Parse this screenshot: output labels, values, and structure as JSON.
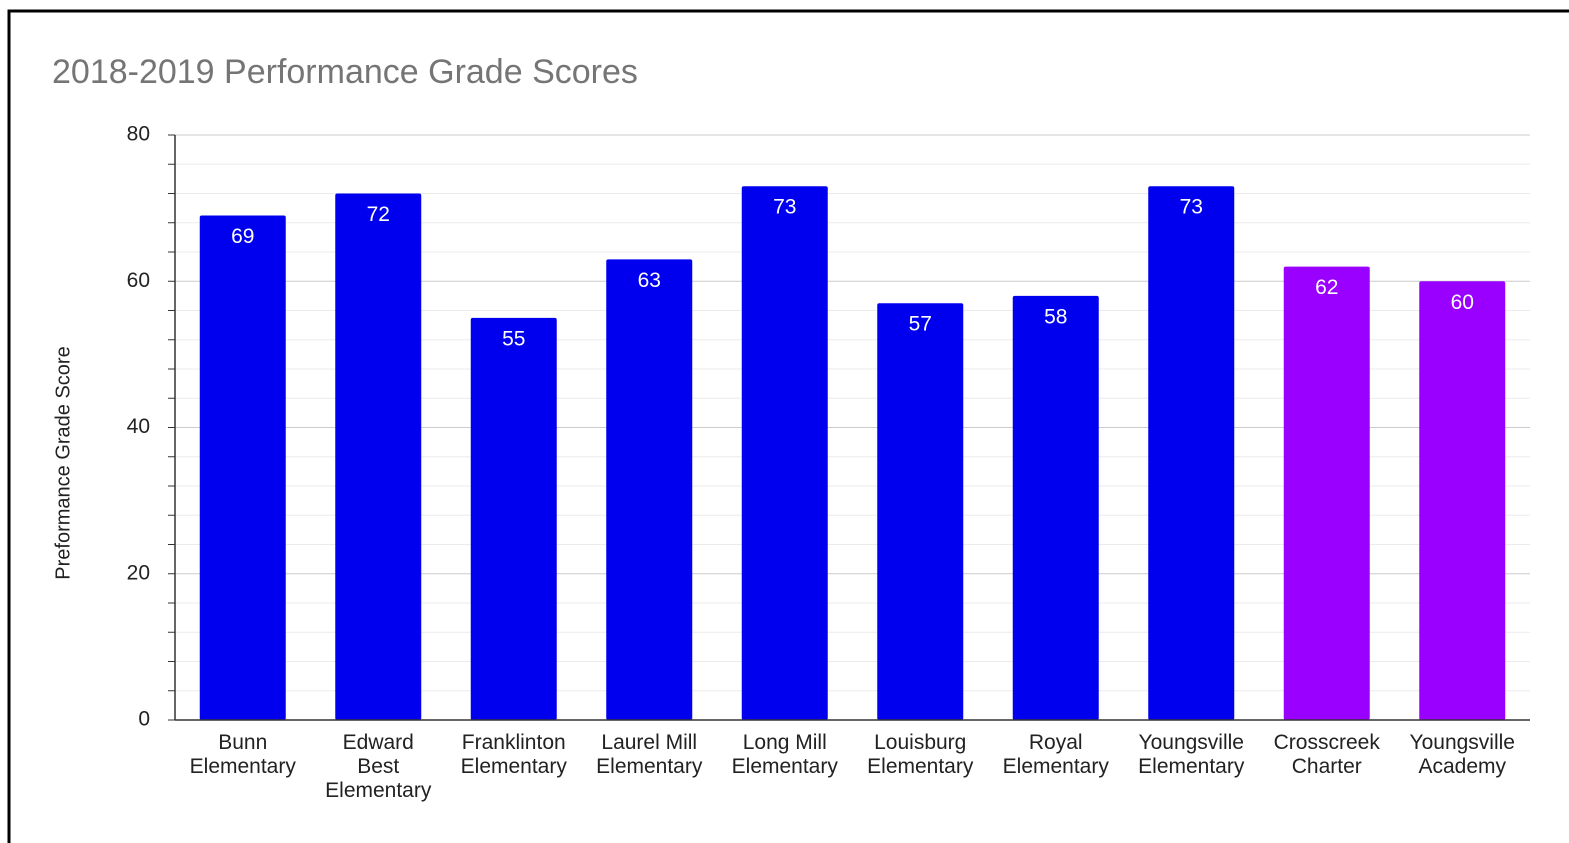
{
  "chart_data": {
    "type": "bar",
    "title": "2018-2019 Performance Grade Scores",
    "y_label": "Preformance Grade Score",
    "categories": [
      "Bunn\nElementary",
      "Edward\nBest\nElementary",
      "Franklinton\nElementary",
      "Laurel Mill\nElementary",
      "Long Mill\nElementary",
      "Louisburg\nElementary",
      "Royal\nElementary",
      "Youngsville\nElementary",
      "Crosscreek\nCharter",
      "Youngsville\nAcademy"
    ],
    "values": [
      69,
      72,
      55,
      63,
      73,
      57,
      58,
      73,
      62,
      60
    ],
    "colors": [
      "#0000ee",
      "#0000ee",
      "#0000ee",
      "#0000ee",
      "#0000ee",
      "#0000ee",
      "#0000ee",
      "#0000ee",
      "#9900ff",
      "#9900ff"
    ],
    "ylim": [
      0,
      80
    ],
    "yticks": [
      0,
      20,
      40,
      60,
      80
    ],
    "grid": true,
    "minor_ticks_per_major": 5,
    "data_labels": true
  }
}
